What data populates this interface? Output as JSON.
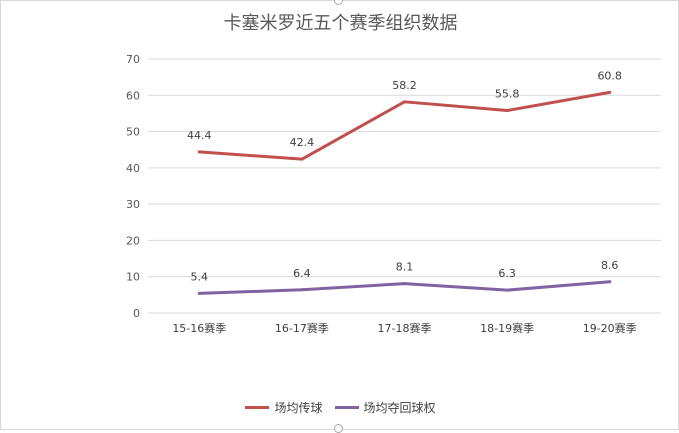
{
  "chart_data": {
    "type": "line",
    "title": "卡塞米罗近五个赛季组织数据",
    "xlabel": "",
    "ylabel": "",
    "categories": [
      "15-16赛季",
      "16-17赛季",
      "17-18赛季",
      "18-19赛季",
      "19-20赛季"
    ],
    "series": [
      {
        "name": "场均传球",
        "values": [
          44.4,
          42.4,
          58.2,
          55.8,
          60.8
        ],
        "color": "#c0504d"
      },
      {
        "name": "场均夺回球权",
        "values": [
          5.4,
          6.4,
          8.1,
          6.3,
          8.6
        ],
        "color": "#8064a2"
      }
    ],
    "ylim": [
      0,
      70
    ],
    "yticks": [
      0,
      10,
      20,
      30,
      40,
      50,
      60,
      70
    ],
    "grid": true,
    "legend": "bottom"
  }
}
